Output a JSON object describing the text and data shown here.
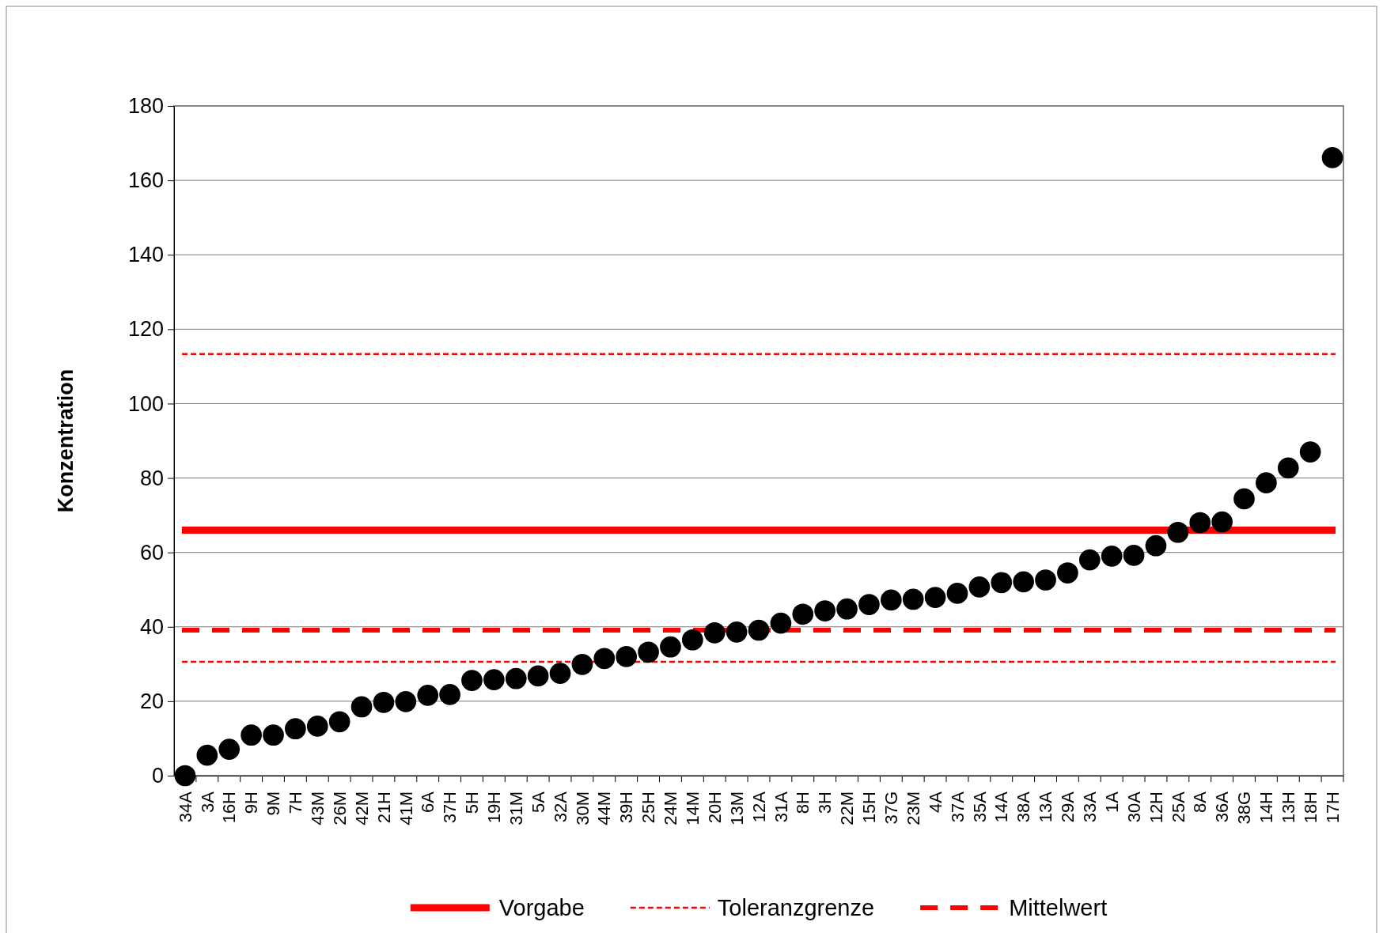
{
  "chart_data": {
    "type": "scatter",
    "ylabel": "Konzentration",
    "categories": [
      "34A",
      "3A",
      "16H",
      "9H",
      "9M",
      "7H",
      "43M",
      "26M",
      "42M",
      "21H",
      "41M",
      "6A",
      "37H",
      "5H",
      "19H",
      "31M",
      "5A",
      "32A",
      "30M",
      "44M",
      "39H",
      "25H",
      "24M",
      "14M",
      "20H",
      "13M",
      "12A",
      "31A",
      "8H",
      "3H",
      "22M",
      "15H",
      "37G",
      "23M",
      "4A",
      "37A",
      "35A",
      "14A",
      "38A",
      "13A",
      "29A",
      "33A",
      "1A",
      "30A",
      "12H",
      "25A",
      "8A",
      "36A",
      "38G",
      "14H",
      "13H",
      "18H",
      "17H"
    ],
    "series": [
      {
        "color": "#000000",
        "values": [
          0,
          5.5,
          7.1,
          10.9,
          10.9,
          12.6,
          13.3,
          14.5,
          18.5,
          19.7,
          19.9,
          21.6,
          21.8,
          25.6,
          25.8,
          26.1,
          26.8,
          27.5,
          29.9,
          31.5,
          32,
          33.2,
          34.6,
          36.5,
          38.4,
          38.6,
          39.1,
          41,
          43.4,
          44.3,
          44.8,
          46,
          47.2,
          47.4,
          47.9,
          49,
          50.7,
          51.9,
          52.1,
          52.6,
          54.5,
          58,
          59,
          59.2,
          61.8,
          65.4,
          68,
          68.2,
          74.4,
          78.7,
          82.7,
          87,
          166.1
        ]
      }
    ],
    "ylim": [
      0,
      180
    ],
    "yticks": [
      0,
      20,
      40,
      60,
      80,
      100,
      120,
      140,
      160,
      180
    ],
    "grid": "y",
    "marker": "circle",
    "legend": "bottom",
    "ref_lines": [
      {
        "axis": "y",
        "value": 66,
        "label": "Vorgabe",
        "color": "#ff0000",
        "line_style": "solid"
      },
      {
        "axis": "y",
        "value": 113.3,
        "label": "Toleranzgrenze",
        "color": "#ff0000",
        "line_style": "dotted"
      },
      {
        "axis": "y",
        "value": 30.6,
        "color": "#ff0000",
        "line_style": "dotted"
      },
      {
        "axis": "y",
        "value": 39.1,
        "label": "Mittelwert",
        "color": "#ff0000",
        "line_style": "dashed"
      }
    ]
  }
}
